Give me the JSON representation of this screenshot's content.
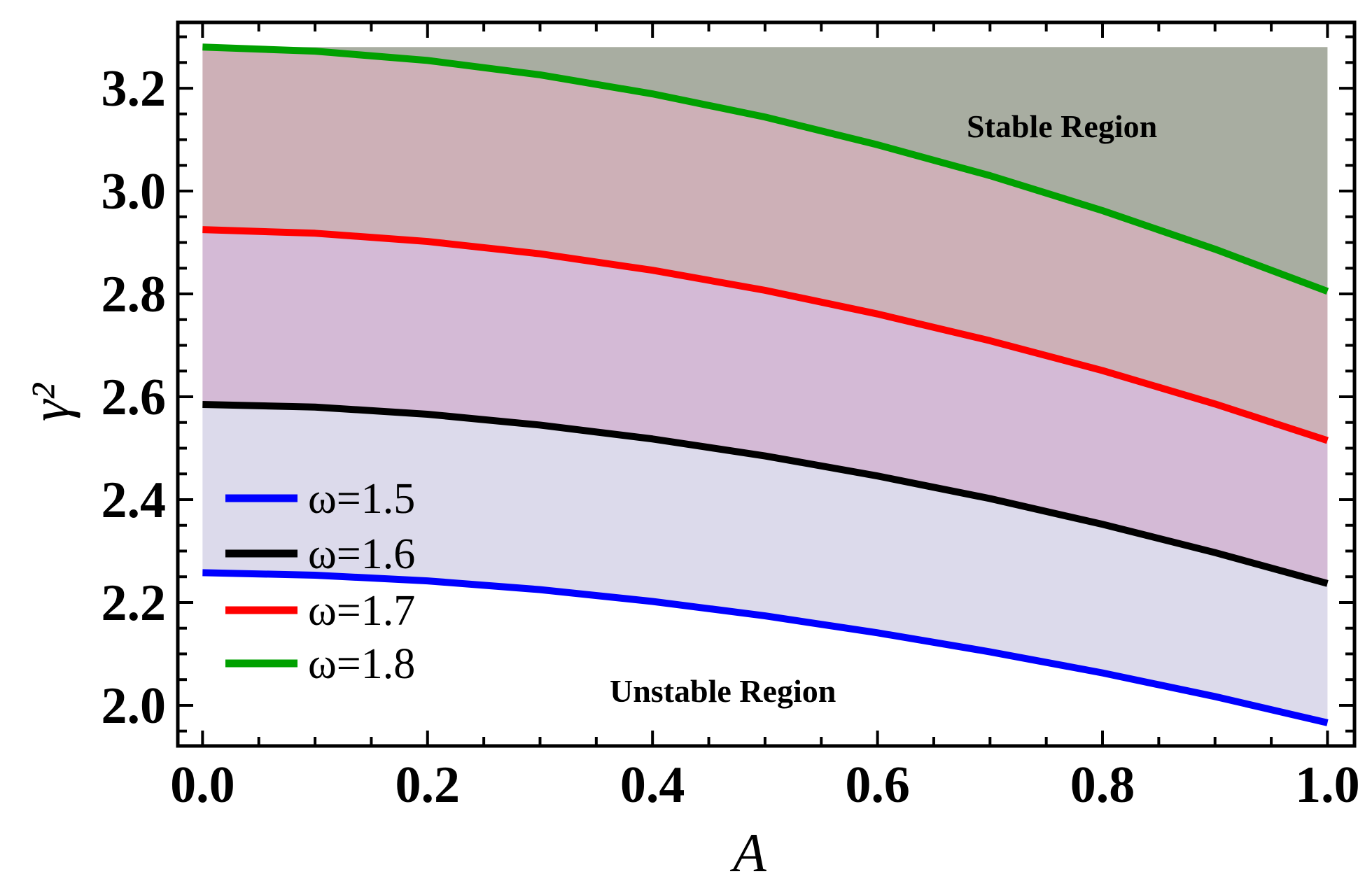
{
  "chart_data": {
    "type": "line",
    "xlabel": "A",
    "ylabel": "γ²",
    "xlim": [
      -0.022,
      1.024
    ],
    "ylim": [
      1.921,
      3.328
    ],
    "xticks": [
      "0.0",
      "0.2",
      "0.4",
      "0.6",
      "0.8",
      "1.0"
    ],
    "yticks": [
      "2.0",
      "2.2",
      "2.4",
      "2.6",
      "2.8",
      "3.0",
      "3.2"
    ],
    "grid": false,
    "legend_placement": "center-left",
    "x": [
      0,
      0.1,
      0.2,
      0.3,
      0.4,
      0.5,
      0.6,
      0.7,
      0.8,
      0.9,
      1.0
    ],
    "series": [
      {
        "name": "ω=1.5",
        "color": "#0000ff",
        "values": [
          2.258,
          2.253,
          2.242,
          2.225,
          2.202,
          2.174,
          2.141,
          2.104,
          2.063,
          2.017,
          1.966
        ]
      },
      {
        "name": "ω=1.6",
        "color": "#000000",
        "values": [
          2.585,
          2.58,
          2.566,
          2.545,
          2.518,
          2.485,
          2.446,
          2.402,
          2.352,
          2.297,
          2.237
        ]
      },
      {
        "name": "ω=1.7",
        "color": "#ff0000",
        "values": [
          2.925,
          2.918,
          2.902,
          2.878,
          2.846,
          2.807,
          2.761,
          2.709,
          2.651,
          2.586,
          2.515
        ]
      },
      {
        "name": "ω=1.8",
        "color": "#00a000",
        "values": [
          3.28,
          3.272,
          3.254,
          3.226,
          3.189,
          3.144,
          3.09,
          3.03,
          2.962,
          2.887,
          2.805
        ]
      }
    ],
    "fill_colors": [
      "#dcdaeb",
      "#d4bad6",
      "#cdb0b7",
      "#a8ada1"
    ],
    "fill_top": 3.28,
    "annotations": [
      "Stable Region",
      "Unstable Region"
    ]
  }
}
